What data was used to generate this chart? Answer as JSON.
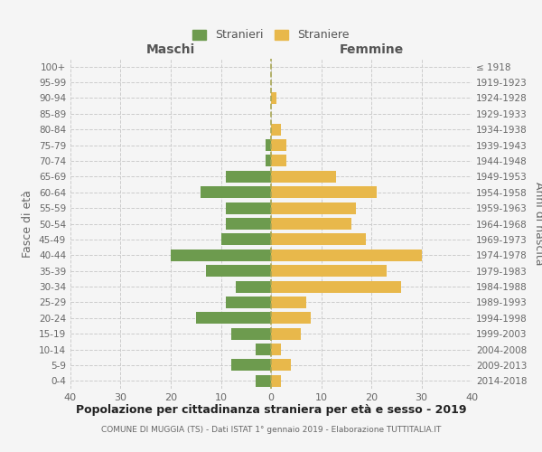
{
  "age_groups": [
    "0-4",
    "5-9",
    "10-14",
    "15-19",
    "20-24",
    "25-29",
    "30-34",
    "35-39",
    "40-44",
    "45-49",
    "50-54",
    "55-59",
    "60-64",
    "65-69",
    "70-74",
    "75-79",
    "80-84",
    "85-89",
    "90-94",
    "95-99",
    "100+"
  ],
  "birth_years": [
    "2014-2018",
    "2009-2013",
    "2004-2008",
    "1999-2003",
    "1994-1998",
    "1989-1993",
    "1984-1988",
    "1979-1983",
    "1974-1978",
    "1969-1973",
    "1964-1968",
    "1959-1963",
    "1954-1958",
    "1949-1953",
    "1944-1948",
    "1939-1943",
    "1934-1938",
    "1929-1933",
    "1924-1928",
    "1919-1923",
    "≤ 1918"
  ],
  "maschi": [
    3,
    8,
    3,
    8,
    15,
    9,
    7,
    13,
    20,
    10,
    9,
    9,
    14,
    9,
    1,
    1,
    0,
    0,
    0,
    0,
    0
  ],
  "femmine": [
    2,
    4,
    2,
    6,
    8,
    7,
    26,
    23,
    30,
    19,
    16,
    17,
    21,
    13,
    3,
    3,
    2,
    0,
    1,
    0,
    0
  ],
  "maschi_color": "#6d9b4e",
  "femmine_color": "#e8b84b",
  "background_color": "#f5f5f5",
  "grid_color": "#cccccc",
  "center_line_color": "#aaa855",
  "title": "Popolazione per cittadinanza straniera per età e sesso - 2019",
  "subtitle": "COMUNE DI MUGGIA (TS) - Dati ISTAT 1° gennaio 2019 - Elaborazione TUTTITALIA.IT",
  "xlabel_left": "Maschi",
  "xlabel_right": "Femmine",
  "ylabel_left": "Fasce di età",
  "ylabel_right": "Anni di nascita",
  "legend_stranieri": "Stranieri",
  "legend_straniere": "Straniere",
  "xlim": 40,
  "bar_height": 0.75
}
